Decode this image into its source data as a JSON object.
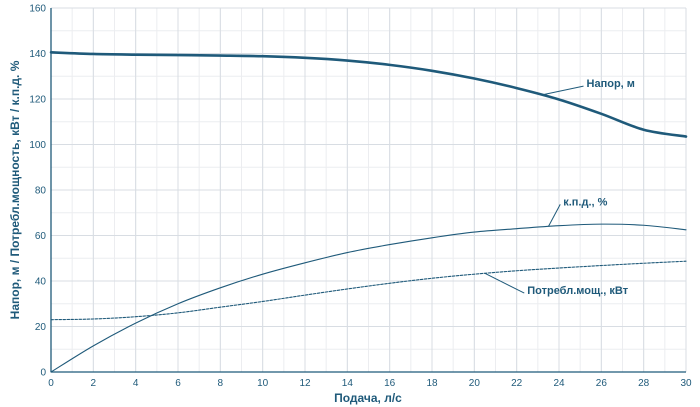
{
  "chart_data": {
    "type": "line",
    "title": "",
    "xlabel": "Подача, л/с",
    "ylabel": "Напор, м / Потребл.мощность, кВт / к.п.д. %",
    "xlim": [
      0,
      30
    ],
    "ylim": [
      0,
      160
    ],
    "x_ticks": [
      0,
      2,
      4,
      6,
      8,
      10,
      12,
      14,
      16,
      18,
      20,
      22,
      24,
      26,
      28,
      30
    ],
    "y_ticks": [
      0,
      20,
      40,
      60,
      80,
      100,
      120,
      140,
      160
    ],
    "x_minor_step": 1,
    "y_minor_step": 10,
    "grid": true,
    "colors": {
      "line": "#1f5a7a",
      "grid_major": "#d8dde3",
      "grid_minor": "#ecedf0",
      "axis": "#1f5a7a"
    },
    "series": [
      {
        "name": "Напор, м",
        "style": "solid-thick",
        "x": [
          0,
          2,
          4,
          6,
          8,
          10,
          12,
          14,
          16,
          18,
          20,
          22,
          24,
          26,
          28,
          30
        ],
        "y": [
          140.5,
          139.8,
          139.5,
          139.3,
          139.1,
          138.8,
          138.1,
          136.9,
          135.0,
          132.4,
          129.0,
          124.8,
          119.8,
          113.5,
          106.5,
          103.5
        ]
      },
      {
        "name": "к.п.д., %",
        "style": "solid-thin",
        "x": [
          0,
          2,
          4,
          6,
          8,
          10,
          12,
          14,
          16,
          18,
          20,
          22,
          24,
          26,
          28,
          30
        ],
        "y": [
          0,
          11.5,
          21.5,
          30.0,
          37.0,
          43.0,
          48.0,
          52.5,
          56.0,
          59.0,
          61.5,
          63.0,
          64.3,
          65.0,
          64.5,
          62.5
        ]
      },
      {
        "name": "Потребл.мощ., кВт",
        "style": "dashed",
        "x": [
          0,
          2,
          4,
          6,
          8,
          10,
          12,
          14,
          16,
          18,
          20,
          22,
          24,
          26,
          28,
          30
        ],
        "y": [
          23.0,
          23.3,
          24.3,
          26.0,
          28.5,
          31.0,
          33.8,
          36.5,
          39.0,
          41.2,
          43.0,
          44.5,
          45.7,
          46.8,
          47.8,
          48.7
        ]
      }
    ],
    "annotations": [
      {
        "text": "Напор, м",
        "series_index": 0,
        "at_x": 23.2,
        "label_x": 25.3,
        "label_y": 127
      },
      {
        "text": "к.п.д., %",
        "series_index": 1,
        "at_x": 23.5,
        "label_x": 24.2,
        "label_y": 75
      },
      {
        "text": "Потребл.мощ., кВт",
        "series_index": 2,
        "at_x": 20.5,
        "label_x": 22.5,
        "label_y": 36
      }
    ]
  }
}
